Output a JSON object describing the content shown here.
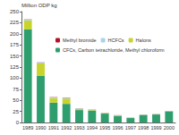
{
  "chart_data": {
    "type": "bar",
    "stacked": true,
    "grid": false,
    "legend": "top",
    "y_label": "Million ODP kg",
    "categories": [
      "1989",
      "1990",
      "1991",
      "1992",
      "1993",
      "1994",
      "1995",
      "1996",
      "1997",
      "1998",
      "1999",
      "2000"
    ],
    "series": [
      {
        "name": "Methyl bromide",
        "color": "#b3132a",
        "values": [
          0.5,
          0.5,
          0.5,
          0.5,
          0.3,
          0.3,
          0.3,
          0.2,
          0.2,
          0.2,
          0.2,
          0.2
        ]
      },
      {
        "name": "HCFCs",
        "color": "#a9d4e8",
        "values": [
          2,
          2,
          2,
          2,
          1,
          1,
          0.5,
          0.5,
          0.5,
          0.5,
          0.5,
          0.5
        ]
      },
      {
        "name": "Halons",
        "color": "#c8d42c",
        "values": [
          20,
          28,
          10,
          12,
          3,
          1,
          1,
          1,
          0.5,
          0.5,
          0.5,
          0.5
        ]
      },
      {
        "name": "CFCs, Carbon tetrachloride, Methyl chloroform",
        "color": "#2e9e6e",
        "values": [
          210,
          105,
          45,
          42,
          28,
          27,
          20,
          15,
          10,
          17,
          18,
          25
        ]
      }
    ],
    "ylim": [
      0,
      250
    ],
    "yticks": [
      0,
      25,
      50,
      75,
      100,
      125,
      150,
      175,
      200,
      225,
      250
    ]
  }
}
